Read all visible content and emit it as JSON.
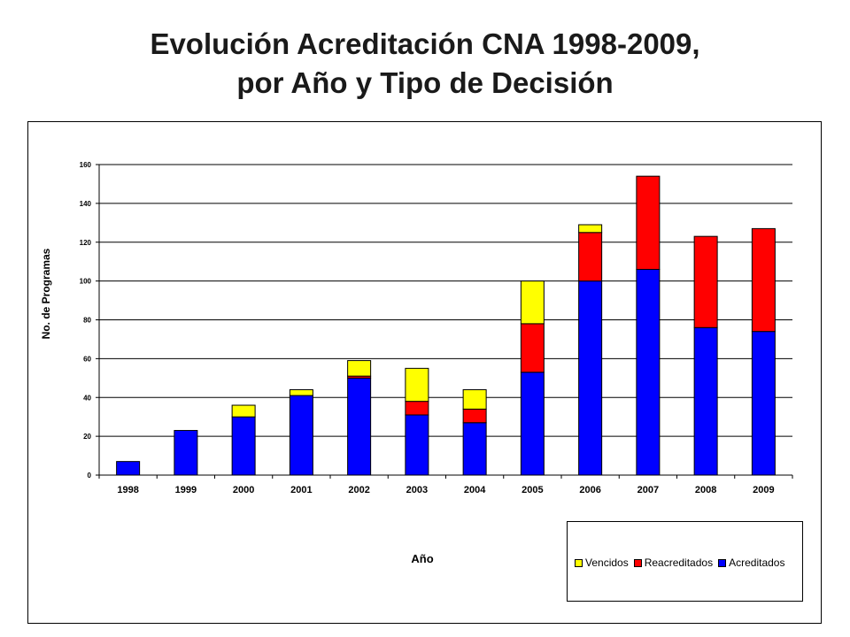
{
  "title_line1": "Evolución Acreditación CNA 1998-2009,",
  "title_line2": "por Año y Tipo de Decisión",
  "chart_data": {
    "type": "bar",
    "stacked": true,
    "categories": [
      "1998",
      "1999",
      "2000",
      "2001",
      "2002",
      "2003",
      "2004",
      "2005",
      "2006",
      "2007",
      "2008",
      "2009"
    ],
    "series": [
      {
        "name": "Acreditados",
        "color": "#0000ff",
        "values": [
          7,
          23,
          30,
          41,
          50,
          31,
          27,
          53,
          100,
          106,
          76,
          74
        ]
      },
      {
        "name": "Reacreditados",
        "color": "#ff0000",
        "values": [
          0,
          0,
          0,
          0,
          1,
          7,
          7,
          25,
          25,
          48,
          47,
          53
        ]
      },
      {
        "name": "Vencidos",
        "color": "#ffff00",
        "values": [
          0,
          0,
          6,
          3,
          8,
          17,
          10,
          22,
          4,
          0,
          0,
          0
        ]
      }
    ],
    "xlabel": "Año",
    "ylabel": "No. de Programas",
    "ylim": [
      0,
      160
    ],
    "yticks": [
      0,
      20,
      40,
      60,
      80,
      100,
      120,
      140,
      160
    ],
    "grid": true,
    "legend_position": "bottom-right"
  }
}
